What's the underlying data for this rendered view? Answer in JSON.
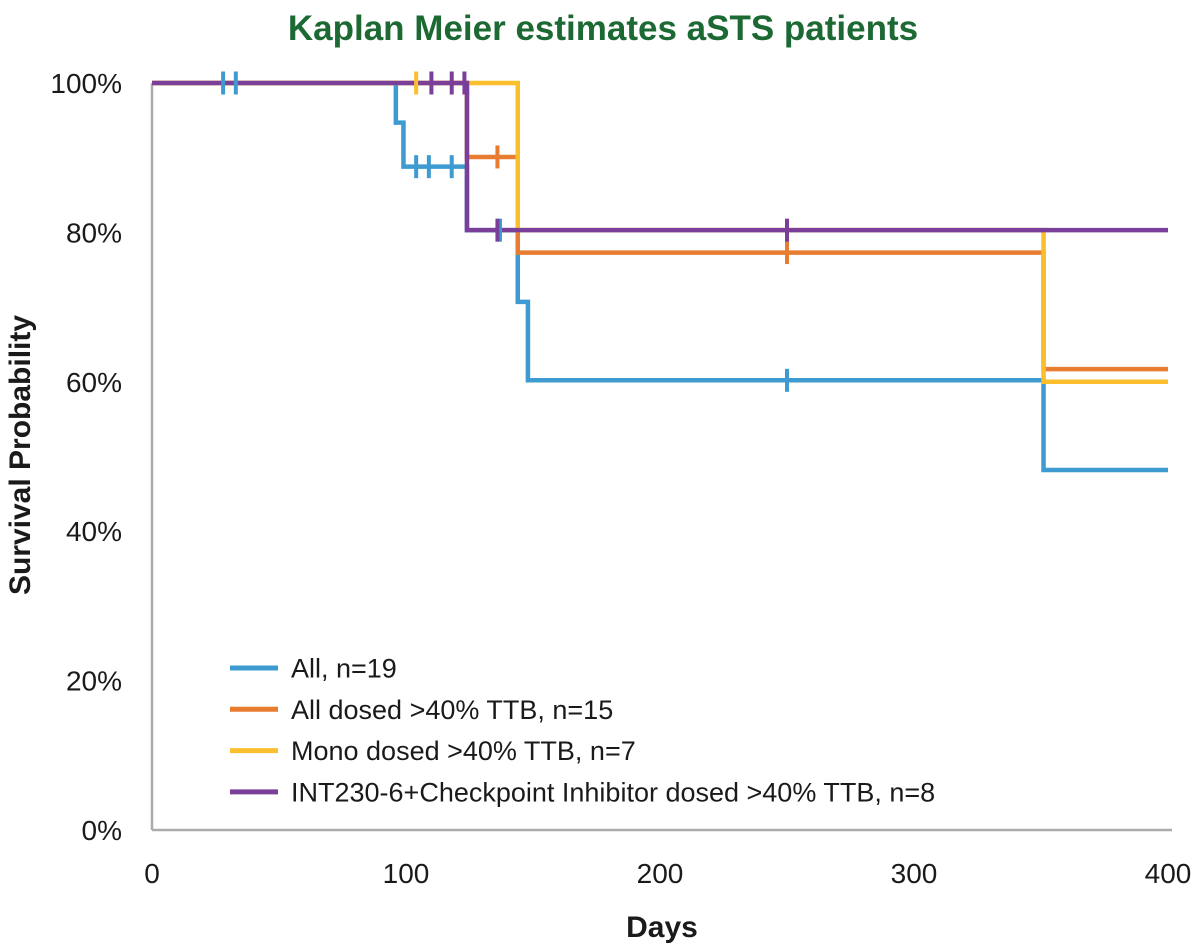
{
  "page": {
    "background": "#FFFFFF",
    "text_color": "#1A1A1A"
  },
  "chart_data": {
    "type": "line",
    "subtype": "kaplan-meier-step",
    "title": "Kaplan Meier estimates aSTS patients",
    "title_color": "#1D6934",
    "xlabel": "Days",
    "ylabel": "Survival Probability",
    "xlim": [
      0,
      400
    ],
    "ylim": [
      0,
      100
    ],
    "xticks": [
      {
        "value": 0,
        "label": "0"
      },
      {
        "value": 100,
        "label": "100"
      },
      {
        "value": 200,
        "label": "200"
      },
      {
        "value": 300,
        "label": "300"
      },
      {
        "value": 400,
        "label": "400"
      }
    ],
    "yticks": [
      {
        "value": 0,
        "label": "0%"
      },
      {
        "value": 20,
        "label": "20%"
      },
      {
        "value": 40,
        "label": "40%"
      },
      {
        "value": 60,
        "label": "60%"
      },
      {
        "value": 80,
        "label": "80%"
      },
      {
        "value": 100,
        "label": "100%"
      }
    ],
    "axis_color": "#ABABAB",
    "grid": "off",
    "legend_position": "inside-bottom-left",
    "censor_marker": "vertical-tick",
    "series": [
      {
        "name": "All, n=19",
        "color": "#3D9BD1",
        "steps_day_percent": [
          [
            0,
            100
          ],
          [
            96,
            100
          ],
          [
            96,
            94.7
          ],
          [
            99,
            94.7
          ],
          [
            99,
            88.8
          ],
          [
            124,
            88.8
          ],
          [
            124,
            80.3
          ],
          [
            144,
            80.3
          ],
          [
            144,
            70.7
          ],
          [
            148,
            70.7
          ],
          [
            148,
            60.2
          ],
          [
            351,
            60.2
          ],
          [
            351,
            48.2
          ],
          [
            400,
            48.2
          ]
        ],
        "censors_day_percent": [
          [
            28,
            100
          ],
          [
            33,
            100
          ],
          [
            104,
            88.8
          ],
          [
            109,
            88.8
          ],
          [
            118,
            88.8
          ],
          [
            137,
            80.3
          ],
          [
            250,
            60.2
          ]
        ]
      },
      {
        "name": "All dosed >40% TTB, n=15",
        "color": "#E87D31",
        "steps_day_percent": [
          [
            0,
            100
          ],
          [
            124,
            100
          ],
          [
            124,
            90.1
          ],
          [
            144,
            90.1
          ],
          [
            144,
            77.3
          ],
          [
            351,
            77.3
          ],
          [
            351,
            61.7
          ],
          [
            400,
            61.7
          ]
        ],
        "censors_day_percent": [
          [
            136,
            90.1
          ],
          [
            250,
            77.3
          ]
        ]
      },
      {
        "name": "Mono dosed >40% TTB, n=7",
        "color": "#FBBE2D",
        "steps_day_percent": [
          [
            0,
            100
          ],
          [
            144,
            100
          ],
          [
            144,
            80.3
          ],
          [
            351,
            80.3
          ],
          [
            351,
            60
          ],
          [
            400,
            60
          ]
        ],
        "censors_day_percent": [
          [
            104,
            100
          ]
        ]
      },
      {
        "name": "INT230-6+Checkpoint Inhibitor dosed >40% TTB, n=8",
        "color": "#7A3F98",
        "steps_day_percent": [
          [
            0,
            100
          ],
          [
            124,
            100
          ],
          [
            124,
            80.3
          ],
          [
            400,
            80.3
          ]
        ],
        "censors_day_percent": [
          [
            110,
            100
          ],
          [
            118,
            100
          ],
          [
            123,
            100
          ],
          [
            136,
            80.3
          ],
          [
            250,
            80.3
          ]
        ]
      }
    ]
  }
}
